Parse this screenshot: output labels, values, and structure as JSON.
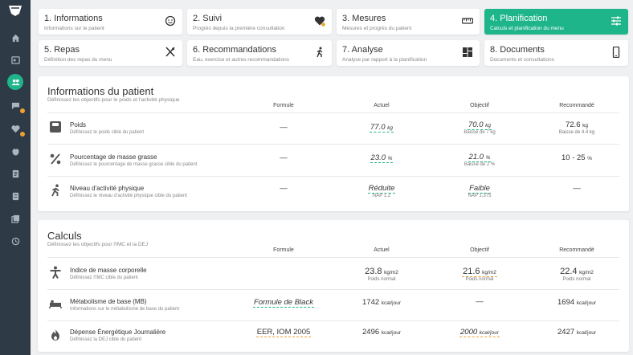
{
  "steps": [
    {
      "title": "1. Informations",
      "subtitle": "Informations sur le patient",
      "icon": "face-icon"
    },
    {
      "title": "2. Suivi",
      "subtitle": "Progrès depuis la première consultation",
      "icon": "heart-icon"
    },
    {
      "title": "3. Mesures",
      "subtitle": "Mesures et progrès du patient",
      "icon": "ruler-icon"
    },
    {
      "title": "4. Planification",
      "subtitle": "Calculs et planification du menu",
      "icon": "sliders-icon"
    },
    {
      "title": "5. Repas",
      "subtitle": "Définition des repas du menu",
      "icon": "cutlery-icon"
    },
    {
      "title": "6. Recommandations",
      "subtitle": "Eau, exercice et autres recommandations",
      "icon": "walk-icon"
    },
    {
      "title": "7. Analyse",
      "subtitle": "Analyse par rapport à la planification",
      "icon": "dashboard-icon"
    },
    {
      "title": "8. Documents",
      "subtitle": "Documents et consultations",
      "icon": "phone-icon"
    }
  ],
  "colors": {
    "accent": "#1fb58a",
    "warning": "#f0a030",
    "sidebar": "#2e3a46"
  },
  "patient": {
    "title": "Informations du patient",
    "subtitle": "Définissez les objectifs pour le poids et l'activité physique",
    "headers": {
      "formule": "Formule",
      "actuel": "Actuel",
      "objectif": "Objectif",
      "recommande": "Recommandé"
    },
    "rows": [
      {
        "label": "Poids",
        "sub": "Définissez le poids cible du patient",
        "formule": "—",
        "actuel": "77.0",
        "actuel_unit": "kg",
        "objectif": "70.0",
        "objectif_unit": "kg",
        "objectif_note": "Baisse de 7 kg",
        "recommande": "72.6",
        "recommande_unit": "kg",
        "recommande_note": "Baisse de 4.4 kg"
      },
      {
        "label": "Pourcentage de masse grasse",
        "sub": "Définissez le pourcentage de masse grasse cible du patient",
        "formule": "—",
        "actuel": "23.0",
        "actuel_unit": "%",
        "objectif": "21.0",
        "objectif_unit": "%",
        "objectif_note": "Baisse de 2 %",
        "recommande": "10 - 25",
        "recommande_unit": "%"
      },
      {
        "label": "Niveau d'activité physique",
        "sub": "Définissez le niveau d'activité physique cible du patient",
        "formule": "—",
        "actuel": "Réduite",
        "actuel_note": "NAP 1.2",
        "objectif": "Faible",
        "objectif_note": "NAP 1.375",
        "recommande": "—"
      }
    ]
  },
  "calculs": {
    "title": "Calculs",
    "subtitle": "Définissez les objectifs pour l'IMC et la DEJ",
    "headers": {
      "formule": "Formule",
      "actuel": "Actuel",
      "objectif": "Objectif",
      "recommande": "Recommandé"
    },
    "rows": [
      {
        "label": "Indice de masse corporelle",
        "sub": "Définissez l'IMC cible du patient",
        "formule": "",
        "actuel": "23.8",
        "actuel_unit": "kg/m2",
        "actuel_note": "Poids normal",
        "objectif": "21.6",
        "objectif_unit": "kg/m2",
        "objectif_note": "Poids normal",
        "recommande": "22.4",
        "recommande_unit": "kg/m2",
        "recommande_note": "Poids normal"
      },
      {
        "label": "Métabolisme de base (MB)",
        "sub": "Informations sur le métabolisme de base du patient",
        "formule": "Formule de Black",
        "actuel": "1742",
        "actuel_unit": "kcal/jour",
        "objectif": "—",
        "recommande": "1694",
        "recommande_unit": "kcal/jour"
      },
      {
        "label": "Dépense Énergétique Journalière",
        "sub": "Définissez la DEJ cible du patient",
        "formule": "EER, IOM 2005",
        "actuel": "2496",
        "actuel_unit": "kcal/jour",
        "objectif": "2000",
        "objectif_unit": "kcal/jour",
        "recommande": "2427",
        "recommande_unit": "kcal/jour"
      }
    ]
  }
}
